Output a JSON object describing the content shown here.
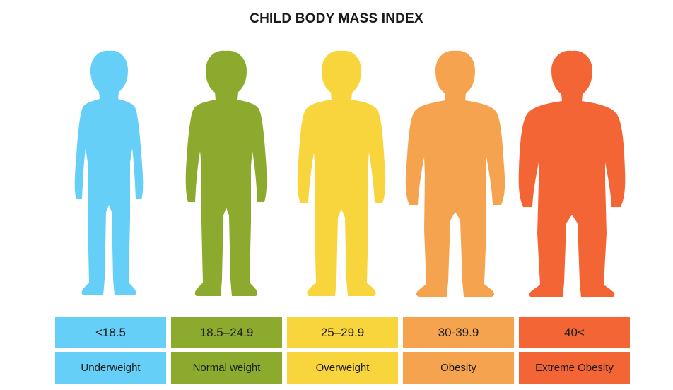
{
  "title": "CHILD BODY MASS INDEX",
  "categories": [
    {
      "range": "<18.5",
      "label": "Underweight",
      "color": "#66cff7"
    },
    {
      "range": "18.5–24.9",
      "label": "Normal weight",
      "color": "#8cab2e"
    },
    {
      "range": "25–29.9",
      "label": "Overweight",
      "color": "#f8d53c"
    },
    {
      "range": "30-39.9",
      "label": "Obesity",
      "color": "#f5a34e"
    },
    {
      "range": "40<",
      "label": "Extreme Obesity",
      "color": "#f46535"
    }
  ]
}
